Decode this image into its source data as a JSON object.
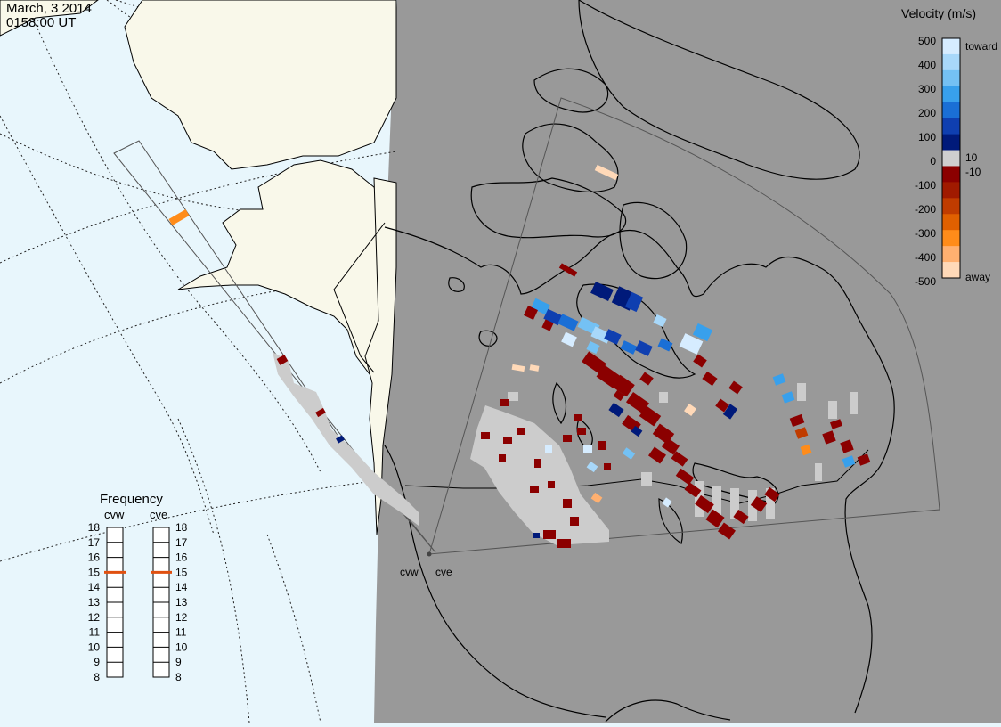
{
  "header": {
    "date": "March, 3 2014",
    "time": "0158:00 UT"
  },
  "colors": {
    "ocean": "#e8f6fc",
    "land": "#f9f8ea",
    "night_shade": "#999999",
    "ground_scatter": "#cccccc",
    "field_of_view_line": "#555555"
  },
  "radars": [
    {
      "name": "cvw",
      "frequency_mhz": 15
    },
    {
      "name": "cve",
      "frequency_mhz": 15
    }
  ],
  "colorbar": {
    "title": "Velocity (m/s)",
    "ticks": [
      "500",
      "400",
      "300",
      "200",
      "100",
      "10",
      "0",
      "-10",
      "-100",
      "-200",
      "-300",
      "-400",
      "-500"
    ],
    "toward_label": "toward",
    "away_label": "away",
    "colors": [
      "#d6ecff",
      "#a8d8fa",
      "#74c1f4",
      "#38a0ec",
      "#1a6fd6",
      "#0f3fb0",
      "#001a7a",
      "#cfcfcf",
      "#8b0000",
      "#a01a00",
      "#c03c00",
      "#e06000",
      "#ff8c1a",
      "#ffb070",
      "#ffd9b8"
    ]
  },
  "frequency_panel": {
    "title": "Frequency",
    "columns": [
      "cvw",
      "cve"
    ],
    "scale_min": 8,
    "scale_max": 18,
    "labels": [
      "18",
      "17",
      "16",
      "15",
      "14",
      "13",
      "12",
      "11",
      "10",
      "9",
      "8"
    ],
    "marker_color": "#e05010"
  }
}
